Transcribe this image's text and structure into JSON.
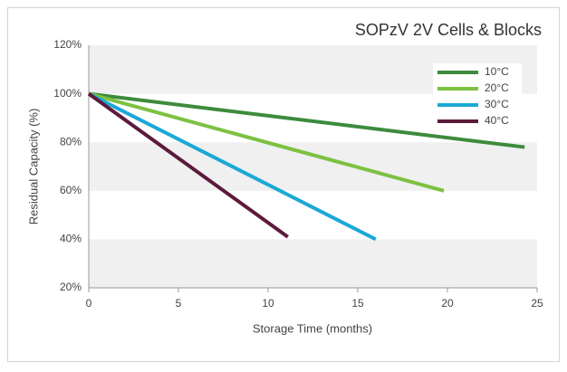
{
  "chart_data": {
    "type": "line",
    "title": "SOPzV 2V Cells & Blocks",
    "xlabel": "Storage Time (months)",
    "ylabel": "Residual Capacity (%)",
    "xlim": [
      0,
      25
    ],
    "xticks": [
      0,
      5,
      10,
      15,
      20,
      25
    ],
    "ylim": [
      20,
      120
    ],
    "yticks": [
      {
        "value": 20,
        "label": "20%"
      },
      {
        "value": 40,
        "label": "40%"
      },
      {
        "value": 60,
        "label": "60%"
      },
      {
        "value": 80,
        "label": "80%"
      },
      {
        "value": 100,
        "label": "100%"
      },
      {
        "value": 120,
        "label": "120%"
      }
    ],
    "grid": "bands",
    "legend": "upper right",
    "series": [
      {
        "name": "10°C",
        "color": "#3d8b3d",
        "x": [
          0,
          24.3
        ],
        "values": [
          100,
          78
        ]
      },
      {
        "name": "20°C",
        "color": "#7dc142",
        "x": [
          0,
          19.8
        ],
        "values": [
          100,
          60
        ]
      },
      {
        "name": "30°C",
        "color": "#1ba8d6",
        "x": [
          0,
          16
        ],
        "values": [
          100,
          40
        ]
      },
      {
        "name": "40°C",
        "color": "#5c1a3c",
        "x": [
          0,
          11.1
        ],
        "values": [
          100,
          41
        ]
      }
    ]
  }
}
